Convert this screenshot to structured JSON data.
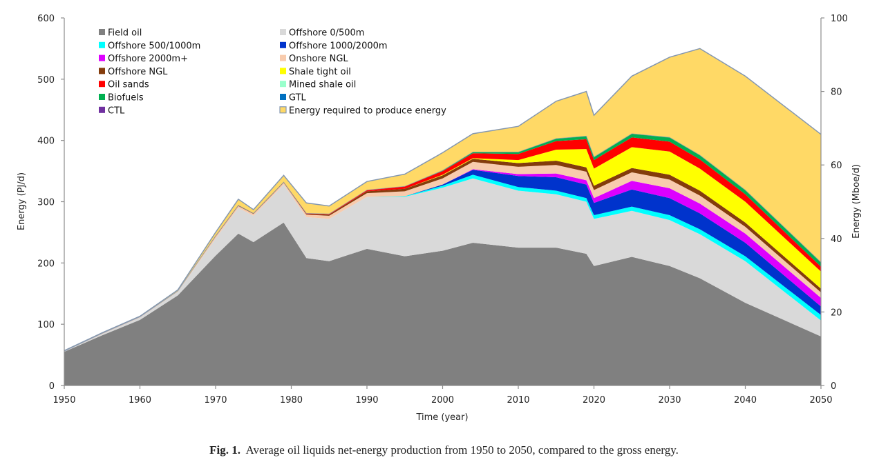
{
  "chart_data": {
    "type": "area",
    "stacked": true,
    "title": "",
    "xlabel": "Time (year)",
    "ylabel": "Energy  (PJ/d)",
    "y2label": "Energy (Mboe/d)",
    "xlim": [
      1950,
      2050
    ],
    "ylim": [
      0,
      600
    ],
    "y2lim": [
      0,
      100
    ],
    "xticks": [
      1950,
      1960,
      1970,
      1980,
      1990,
      2000,
      2010,
      2020,
      2030,
      2040,
      2050
    ],
    "yticks": [
      0,
      100,
      200,
      300,
      400,
      500,
      600
    ],
    "y2ticks": [
      0,
      20,
      40,
      60,
      80,
      100
    ],
    "grid": false,
    "legend_position": "top-left",
    "x": [
      1950,
      1955,
      1960,
      1965,
      1970,
      1973,
      1975,
      1979,
      1982,
      1985,
      1990,
      1995,
      2000,
      2004,
      2010,
      2015,
      2019,
      2020,
      2025,
      2030,
      2034,
      2040,
      2050
    ],
    "series": [
      {
        "name": "Field oil",
        "color": "#808080",
        "values": [
          55,
          82,
          107,
          147,
          212,
          248,
          234,
          266,
          208,
          203,
          223,
          211,
          220,
          233,
          225,
          225,
          215,
          195,
          210,
          195,
          175,
          135,
          80
        ]
      },
      {
        "name": "Offshore 0/500m",
        "color": "#d9d9d9",
        "values": [
          1,
          2,
          4,
          6,
          28,
          42,
          43,
          62,
          67,
          69,
          85,
          97,
          103,
          105,
          93,
          87,
          85,
          77,
          75,
          75,
          72,
          68,
          26
        ]
      },
      {
        "name": "Offshore 500/1000m",
        "color": "#00ffff",
        "values": [
          0,
          0,
          0,
          0,
          0,
          0,
          0,
          0,
          0,
          0,
          0,
          1,
          3,
          6,
          6,
          6,
          6,
          6,
          7,
          8,
          8,
          8,
          9
        ]
      },
      {
        "name": "Offshore 1000/2000m",
        "color": "#0033cc",
        "values": [
          0,
          0,
          0,
          0,
          0,
          0,
          0,
          0,
          0,
          0,
          0,
          0,
          2,
          8,
          18,
          22,
          22,
          20,
          28,
          28,
          26,
          22,
          14
        ]
      },
      {
        "name": "Offshore 2000m+",
        "color": "#dd00ff",
        "values": [
          0,
          0,
          0,
          0,
          0,
          0,
          0,
          0,
          0,
          0,
          0,
          0,
          0,
          1,
          3,
          6,
          7,
          8,
          14,
          16,
          16,
          15,
          14
        ]
      },
      {
        "name": "Onshore NGL",
        "color": "#f8cbad",
        "values": [
          0,
          1,
          1,
          1,
          3,
          3,
          3,
          3,
          4,
          5,
          6,
          8,
          10,
          12,
          12,
          14,
          14,
          13,
          14,
          14,
          13,
          11,
          9
        ]
      },
      {
        "name": "Offshore NGL",
        "color": "#843c0c",
        "values": [
          0,
          0,
          0,
          0,
          1,
          1,
          1,
          1,
          1,
          2,
          3,
          4,
          5,
          5,
          6,
          7,
          7,
          7,
          7,
          8,
          8,
          7,
          6
        ]
      },
      {
        "name": "Shale tight oil",
        "color": "#ffff00",
        "values": [
          0,
          0,
          0,
          0,
          0,
          0,
          0,
          0,
          0,
          0,
          0,
          0,
          1,
          1,
          5,
          18,
          30,
          28,
          34,
          38,
          36,
          34,
          28
        ]
      },
      {
        "name": "Oil sands",
        "color": "#ff0000",
        "values": [
          0,
          0,
          0,
          0,
          0,
          0,
          0,
          0,
          1,
          1,
          2,
          4,
          6,
          8,
          10,
          14,
          16,
          14,
          16,
          16,
          15,
          12,
          8
        ]
      },
      {
        "name": "Mined shale oil",
        "color": "#99ffcc",
        "values": [
          0,
          0,
          0,
          0,
          0,
          0,
          0,
          0,
          0,
          0,
          0,
          0,
          0,
          0,
          0,
          0,
          0,
          0,
          0,
          0,
          0,
          0,
          0
        ]
      },
      {
        "name": "Biofuels",
        "color": "#00b050",
        "values": [
          0,
          0,
          0,
          0,
          0,
          0,
          0,
          0,
          0,
          0,
          0,
          0,
          1,
          2,
          3,
          4,
          5,
          5,
          6,
          7,
          7,
          7,
          7
        ]
      },
      {
        "name": "GTL",
        "color": "#0070c0",
        "values": [
          0,
          0,
          0,
          0,
          0,
          0,
          0,
          0,
          0,
          0,
          0,
          0,
          0,
          0,
          0,
          0,
          0,
          0,
          0,
          0,
          0,
          0,
          0
        ]
      },
      {
        "name": "CTL",
        "color": "#7030a0",
        "values": [
          0,
          0,
          0,
          0,
          0,
          0,
          0,
          0,
          0,
          0,
          0,
          0,
          0,
          0,
          0,
          0,
          0,
          0,
          0,
          0,
          0,
          0,
          0
        ]
      },
      {
        "name": "Energy required to produce energy",
        "color": "#ffd966",
        "edge": "#8497b0",
        "values": [
          1,
          1,
          1,
          2,
          6,
          10,
          6,
          11,
          17,
          13,
          14,
          20,
          29,
          30,
          42,
          61,
          73,
          68,
          94,
          131,
          174,
          186,
          209
        ]
      }
    ]
  },
  "caption": {
    "label": "Fig. 1.",
    "text": "Average oil liquids net-energy production from 1950 to 2050, compared to the gross energy."
  }
}
